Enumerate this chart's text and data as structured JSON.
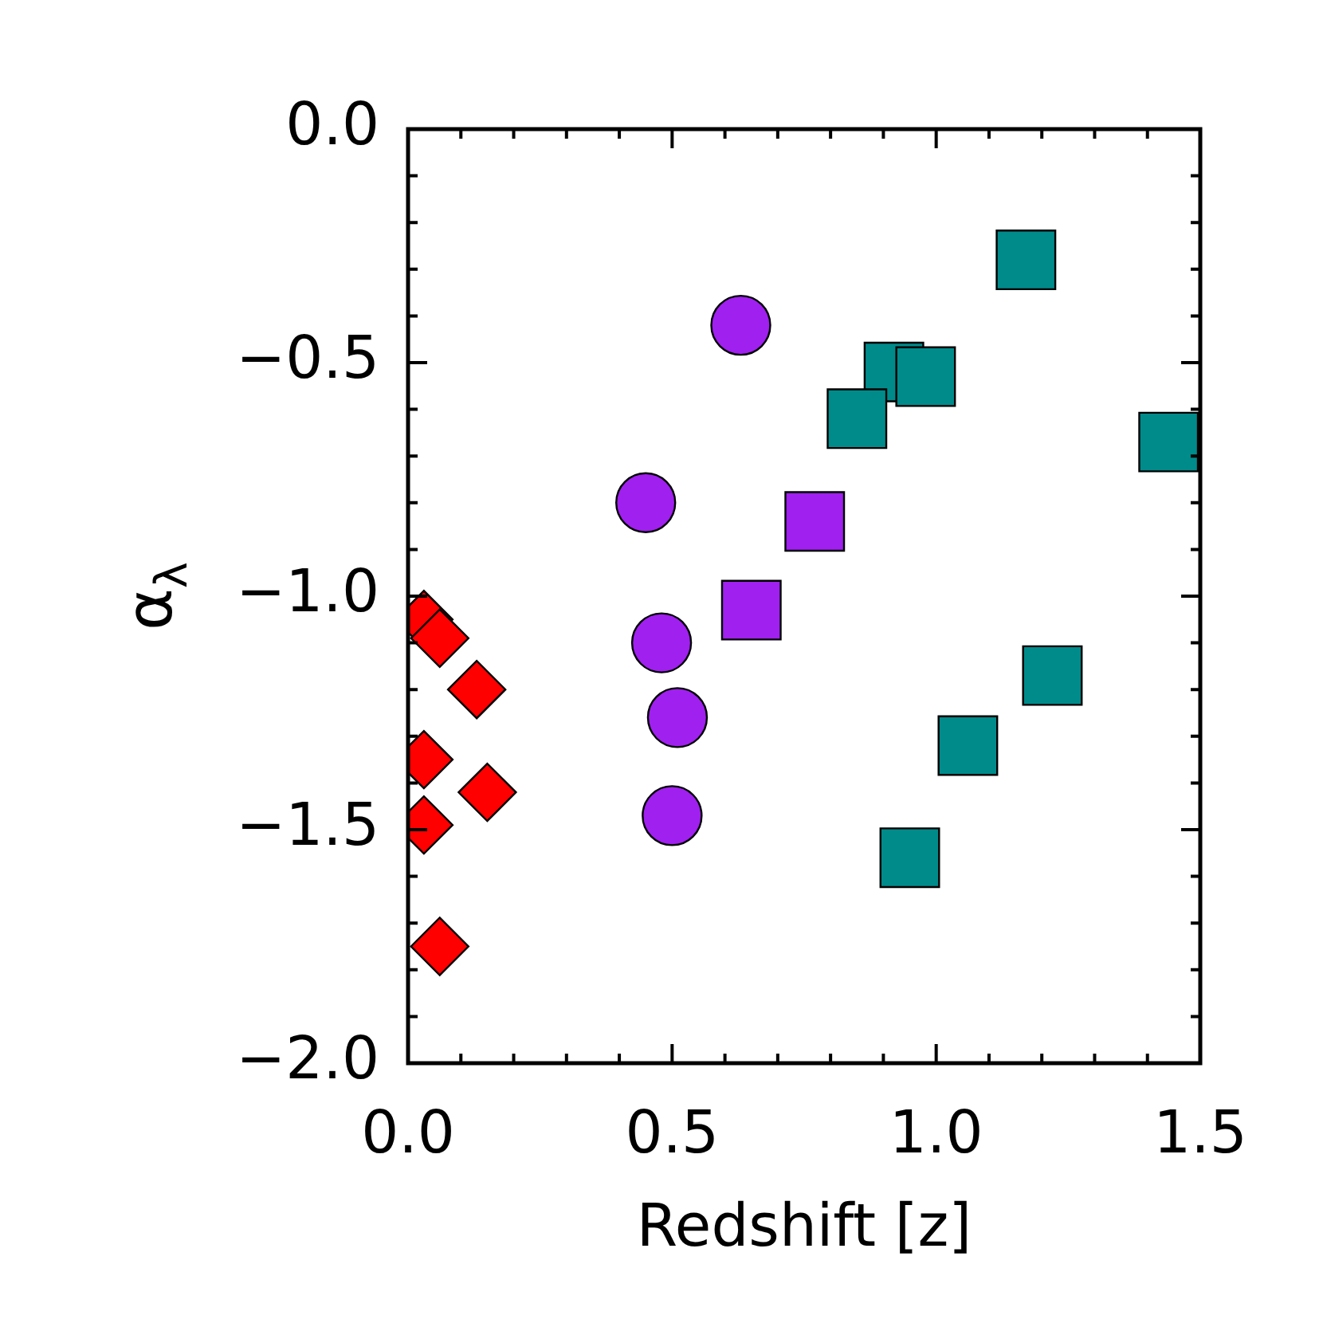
{
  "chart_data": {
    "type": "scatter",
    "xlabel": "Redshift [z]",
    "ylabel": "α$_{λ}$",
    "xlim": [
      0,
      1.5
    ],
    "ylim": [
      -2,
      0
    ],
    "xticks": [
      {
        "value": 0,
        "label": "0.0"
      },
      {
        "value": 0.1,
        "label": null
      },
      {
        "value": 0.2,
        "label": null
      },
      {
        "value": 0.3,
        "label": null
      },
      {
        "value": 0.4,
        "label": null
      },
      {
        "value": 0.5,
        "label": "0.5"
      },
      {
        "value": 0.6,
        "label": null
      },
      {
        "value": 0.7,
        "label": null
      },
      {
        "value": 0.8,
        "label": null
      },
      {
        "value": 0.9,
        "label": null
      },
      {
        "value": 1,
        "label": "1.0"
      },
      {
        "value": 1.1,
        "label": null
      },
      {
        "value": 1.2,
        "label": null
      },
      {
        "value": 1.3,
        "label": null
      },
      {
        "value": 1.4,
        "label": null
      },
      {
        "value": 1.5,
        "label": "1.5"
      }
    ],
    "yticks": [
      {
        "value": -2,
        "label": "−2.0"
      },
      {
        "value": -1.9,
        "label": null
      },
      {
        "value": -1.8,
        "label": null
      },
      {
        "value": -1.7,
        "label": null
      },
      {
        "value": -1.6,
        "label": null
      },
      {
        "value": -1.5,
        "label": "−1.5"
      },
      {
        "value": -1.4,
        "label": null
      },
      {
        "value": -1.3,
        "label": null
      },
      {
        "value": -1.2,
        "label": null
      },
      {
        "value": -1.1,
        "label": null
      },
      {
        "value": -1,
        "label": "−1.0"
      },
      {
        "value": -0.9,
        "label": null
      },
      {
        "value": -0.8,
        "label": null
      },
      {
        "value": -0.7,
        "label": null
      },
      {
        "value": -0.6,
        "label": null
      },
      {
        "value": -0.5,
        "label": "−0.5"
      },
      {
        "value": -0.4,
        "label": null
      },
      {
        "value": -0.3,
        "label": null
      },
      {
        "value": -0.2,
        "label": null
      },
      {
        "value": -0.1,
        "label": null
      },
      {
        "value": 0,
        "label": "0.0"
      }
    ],
    "series": [
      {
        "color": "#ff0000",
        "marker": "diamond",
        "x": [
          0.03,
          0.06,
          0.13,
          0.03,
          0.15,
          0.03,
          0.06
        ],
        "values": [
          -1.05,
          -1.09,
          -1.2,
          -1.35,
          -1.42,
          -1.49,
          -1.75
        ]
      },
      {
        "color": "#a020f0",
        "marker": "circle",
        "x": [
          0.63,
          0.45,
          0.48,
          0.51,
          0.5
        ],
        "values": [
          -0.42,
          -0.8,
          -1.1,
          -1.26,
          -1.47
        ]
      },
      {
        "color": "#a020f0",
        "marker": "square",
        "x": [
          0.77,
          0.65
        ],
        "values": [
          -0.84,
          -1.03
        ]
      },
      {
        "color": "#008b8b",
        "marker": "square",
        "x": [
          1.17,
          0.92,
          0.98,
          0.85,
          1.44,
          1.22,
          1.06,
          0.95
        ],
        "values": [
          -0.28,
          -0.52,
          -0.53,
          -0.62,
          -0.67,
          -1.17,
          -1.32,
          -1.56
        ]
      }
    ]
  }
}
